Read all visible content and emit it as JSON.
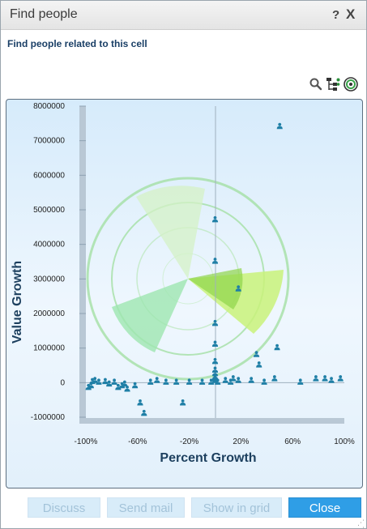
{
  "dialog": {
    "title": "Find people",
    "help_label": "?",
    "close_label": "X",
    "subtitle": "Find people related to this cell"
  },
  "toolbar": {
    "icons": [
      "search-icon",
      "org-chart-icon",
      "radar-icon"
    ]
  },
  "buttons": {
    "discuss": "Discuss",
    "send_mail": "Send mail",
    "show_in_grid": "Show in grid",
    "close": "Close"
  },
  "colors": {
    "accent": "#2f9ee6",
    "marker": "#1f7fa6",
    "title_text": "#1a3f66",
    "ring": "#8fd48f"
  },
  "chart_data": {
    "type": "scatter",
    "xlabel": "Percent Growth",
    "ylabel": "Value Growth",
    "xlim": [
      -100,
      100
    ],
    "ylim": [
      -1000000,
      8000000
    ],
    "x_ticks": [
      -100,
      -60,
      -20,
      20,
      60,
      100
    ],
    "x_tick_labels": [
      "-100%",
      "-60%",
      "-20%",
      "20%",
      "60%",
      "100%"
    ],
    "y_ticks": [
      8000000,
      7000000,
      6000000,
      5000000,
      4000000,
      3000000,
      2000000,
      1000000,
      0,
      -1000000
    ],
    "y_tick_labels": [
      "8000000",
      "7000000",
      "6000000",
      "5000000",
      "4000000",
      "3000000",
      "2000000",
      "1000000",
      "0",
      "-1000000"
    ],
    "points": [
      [
        50,
        7400000
      ],
      [
        0,
        4700000
      ],
      [
        0,
        3500000
      ],
      [
        18,
        2700000
      ],
      [
        0,
        1700000
      ],
      [
        0,
        1100000
      ],
      [
        48,
        1000000
      ],
      [
        32,
        800000
      ],
      [
        34,
        500000
      ],
      [
        0,
        600000
      ],
      [
        0,
        350000
      ],
      [
        0,
        250000
      ],
      [
        0,
        150000
      ],
      [
        0,
        100000
      ],
      [
        0,
        50000
      ],
      [
        -98,
        -150000
      ],
      [
        -96,
        -100000
      ],
      [
        -93,
        50000
      ],
      [
        -95,
        20000
      ],
      [
        -90,
        0
      ],
      [
        -85,
        20000
      ],
      [
        -82,
        -50000
      ],
      [
        -78,
        0
      ],
      [
        -75,
        -150000
      ],
      [
        -72,
        -100000
      ],
      [
        -70,
        -50000
      ],
      [
        -68,
        -200000
      ],
      [
        -62,
        -100000
      ],
      [
        -58,
        -600000
      ],
      [
        -55,
        -900000
      ],
      [
        -50,
        0
      ],
      [
        -45,
        50000
      ],
      [
        -38,
        0
      ],
      [
        -30,
        0
      ],
      [
        -25,
        -600000
      ],
      [
        -20,
        0
      ],
      [
        -10,
        0
      ],
      [
        -3,
        0
      ],
      [
        2,
        0
      ],
      [
        8,
        50000
      ],
      [
        12,
        0
      ],
      [
        14,
        100000
      ],
      [
        18,
        50000
      ],
      [
        28,
        50000
      ],
      [
        38,
        0
      ],
      [
        46,
        100000
      ],
      [
        66,
        0
      ],
      [
        78,
        100000
      ],
      [
        85,
        100000
      ],
      [
        90,
        50000
      ],
      [
        97,
        100000
      ]
    ]
  }
}
